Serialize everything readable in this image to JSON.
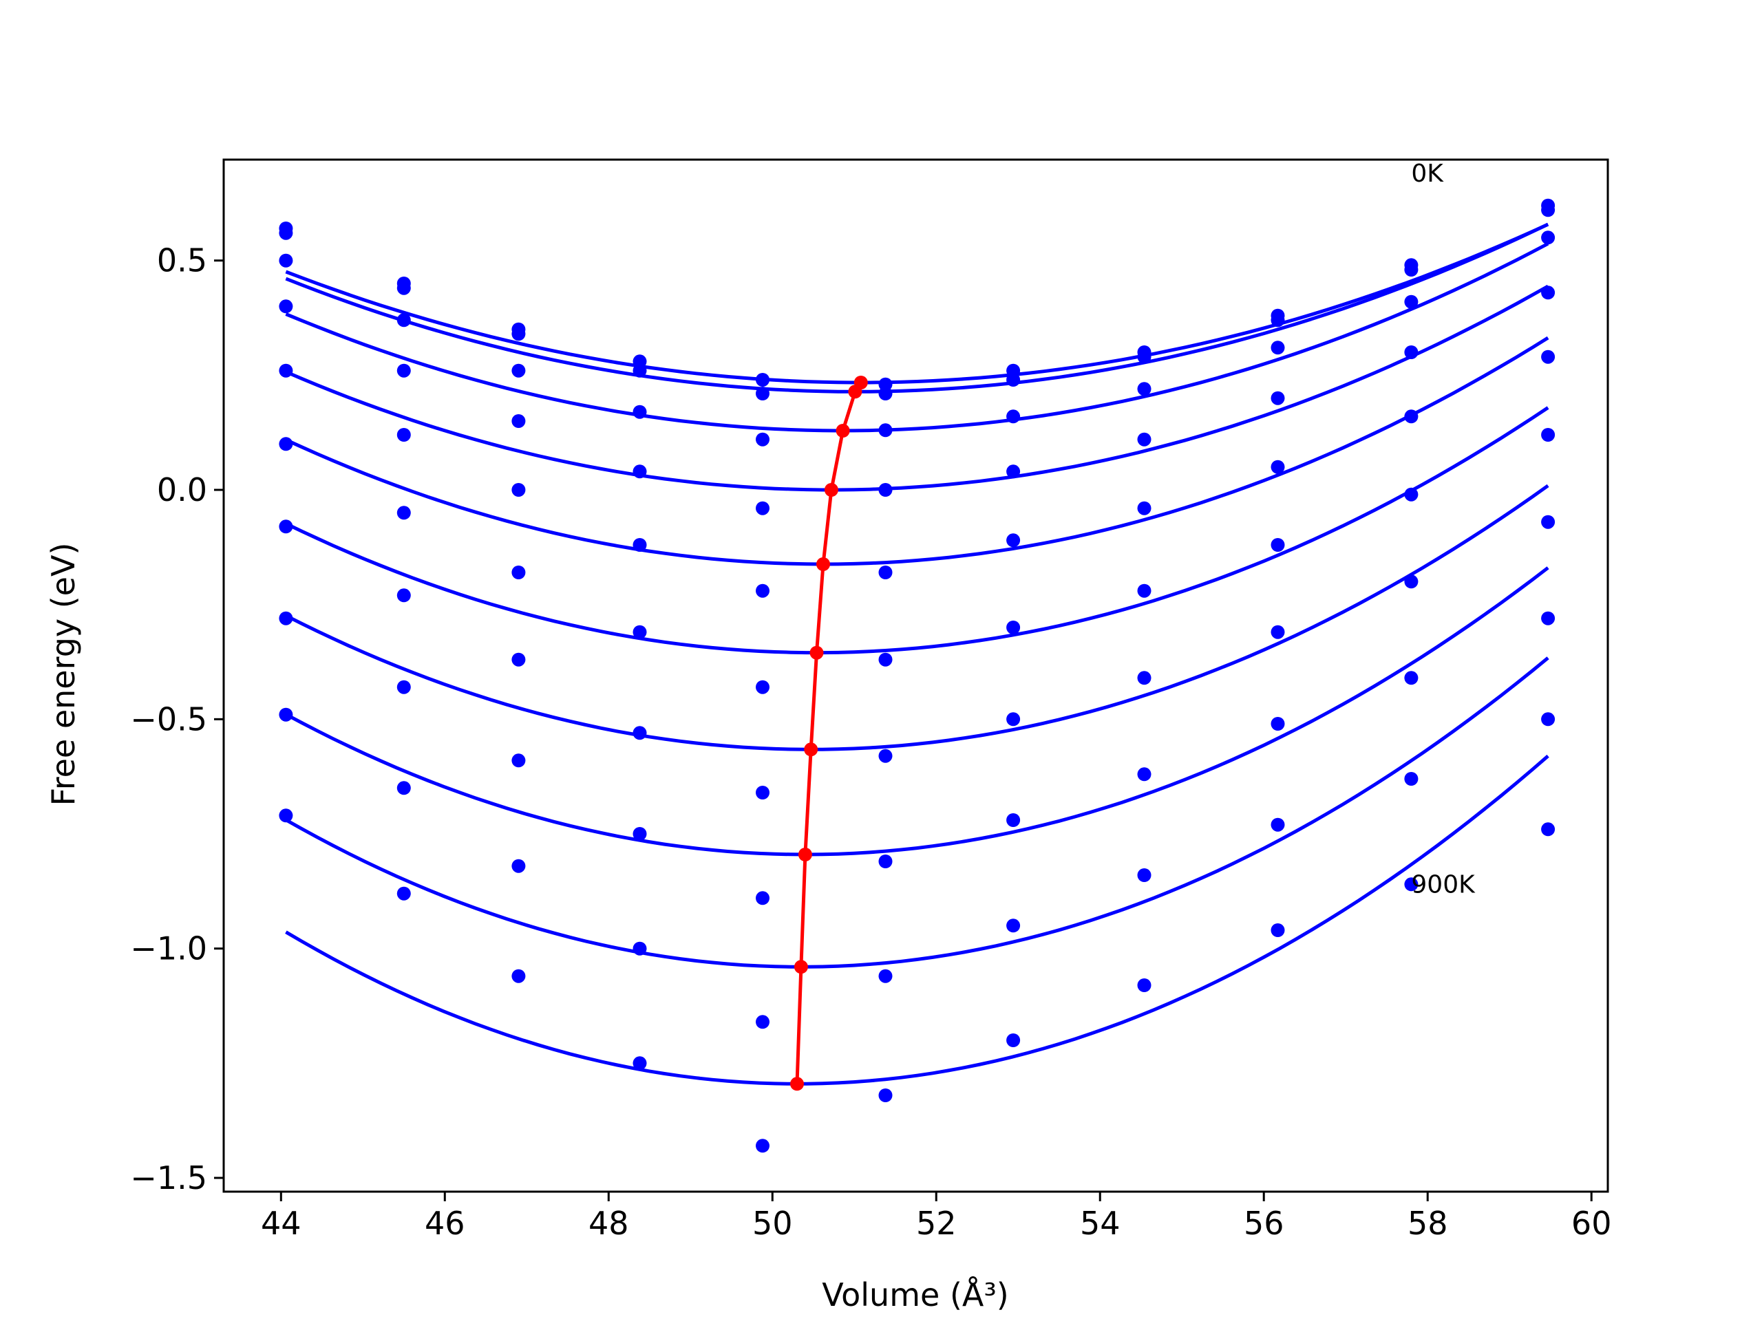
{
  "chart_data": {
    "type": "line",
    "title": "",
    "xlabel": "Volume (Å³)",
    "ylabel": "Free energy (eV)",
    "xlim": [
      43.3,
      60.2
    ],
    "ylim": [
      -1.53,
      0.72
    ],
    "xticks": [
      44,
      46,
      48,
      50,
      52,
      54,
      56,
      58,
      60
    ],
    "yticks": [
      -1.5,
      -1.0,
      -0.5,
      0.0,
      0.5
    ],
    "xtick_labels": [
      "44",
      "46",
      "48",
      "50",
      "52",
      "54",
      "56",
      "58",
      "60"
    ],
    "ytick_labels": [
      "−1.5",
      "−1.0",
      "−0.5",
      "0.0",
      "0.5"
    ],
    "grid": false,
    "colors": {
      "fit": "#0000ff",
      "points": "#0000ff",
      "minimum": "#ff0000",
      "frame": "#000000"
    },
    "annotations": [
      {
        "text": "0K",
        "x": 57.8,
        "y": 0.69
      },
      {
        "text": "900K",
        "x": 57.8,
        "y": -0.86
      }
    ],
    "volumes": [
      44.06,
      45.5,
      46.9,
      48.38,
      49.88,
      51.38,
      52.94,
      54.54,
      56.17,
      57.8,
      59.47
    ],
    "series": [
      {
        "values": [
          0.57,
          0.45,
          0.35,
          0.28,
          0.24,
          0.23,
          0.26,
          0.3,
          0.38,
          0.49,
          0.62
        ],
        "fit": {
          "v0": 51.08,
          "e0": 0.234,
          "a": 0.0049
        }
      },
      {
        "values": [
          0.56,
          0.44,
          0.34,
          0.26,
          0.21,
          0.21,
          0.24,
          0.29,
          0.37,
          0.48,
          0.61
        ],
        "fit": {
          "v0": 51.01,
          "e0": 0.214,
          "a": 0.0051
        }
      },
      {
        "values": [
          0.5,
          0.37,
          0.26,
          0.17,
          0.11,
          0.13,
          0.16,
          0.22,
          0.31,
          0.41,
          0.55
        ],
        "fit": {
          "v0": 50.86,
          "e0": 0.129,
          "a": 0.0055
        }
      },
      {
        "values": [
          0.4,
          0.26,
          0.15,
          0.04,
          -0.04,
          0.0,
          0.04,
          0.11,
          0.2,
          0.3,
          0.43
        ],
        "fit": {
          "v0": 50.72,
          "e0": 0.0,
          "a": 0.0058
        }
      },
      {
        "values": [
          0.26,
          0.12,
          0.0,
          -0.12,
          -0.22,
          -0.18,
          -0.11,
          -0.04,
          0.05,
          0.16,
          0.29
        ],
        "fit": {
          "v0": 50.62,
          "e0": -0.162,
          "a": 0.0063
        }
      },
      {
        "values": [
          0.1,
          -0.05,
          -0.18,
          -0.31,
          -0.43,
          -0.37,
          -0.3,
          -0.22,
          -0.12,
          -0.01,
          0.12
        ],
        "fit": {
          "v0": 50.54,
          "e0": -0.355,
          "a": 0.0067
        }
      },
      {
        "values": [
          -0.08,
          -0.23,
          -0.37,
          -0.53,
          -0.66,
          -0.58,
          -0.5,
          -0.41,
          -0.31,
          -0.2,
          -0.07
        ],
        "fit": {
          "v0": 50.47,
          "e0": -0.566,
          "a": 0.0071
        }
      },
      {
        "values": [
          -0.28,
          -0.43,
          -0.59,
          -0.75,
          -0.89,
          -0.81,
          -0.72,
          -0.62,
          -0.51,
          -0.41,
          -0.28
        ],
        "fit": {
          "v0": 50.4,
          "e0": -0.795,
          "a": 0.0076
        }
      },
      {
        "values": [
          -0.49,
          -0.65,
          -0.82,
          -1.0,
          -1.16,
          -1.06,
          -0.95,
          -0.84,
          -0.73,
          -0.63,
          -0.5
        ],
        "fit": {
          "v0": 50.35,
          "e0": -1.04,
          "a": 0.0081
        }
      },
      {
        "values": [
          -0.71,
          -0.88,
          -1.06,
          -1.25,
          -1.43,
          -1.32,
          -1.2,
          -1.08,
          -0.96,
          -0.86,
          -0.74
        ],
        "fit": {
          "v0": 50.3,
          "e0": -1.295,
          "a": 0.0085
        }
      }
    ],
    "equilibrium": {
      "x": [
        51.08,
        51.01,
        50.86,
        50.72,
        50.62,
        50.54,
        50.47,
        50.4,
        50.35,
        50.3
      ],
      "y": [
        0.234,
        0.214,
        0.129,
        0.0,
        -0.162,
        -0.355,
        -0.566,
        -0.795,
        -1.04,
        -1.295
      ]
    }
  }
}
